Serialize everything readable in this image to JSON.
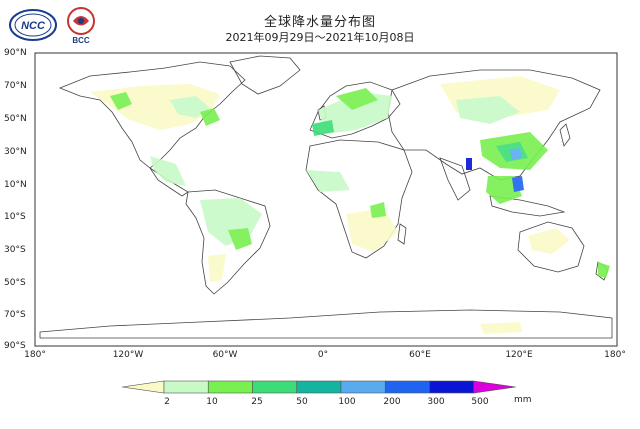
{
  "header": {
    "title": "全球降水量分布图",
    "subtitle": "2021年09月29日～2021年10月08日"
  },
  "logos": {
    "ncc": {
      "text": "NCC",
      "label": "ncc-logo"
    },
    "bcc": {
      "text": "BCC",
      "label": "bcc-logo"
    }
  },
  "axes": {
    "y_labels": [
      "90°N",
      "70°N",
      "50°N",
      "30°N",
      "10°N",
      "10°S",
      "30°S",
      "50°S",
      "70°S",
      "90°S"
    ],
    "x_labels": [
      "180°",
      "120°W",
      "60°W",
      "0°",
      "60°E",
      "120°E",
      "180°"
    ]
  },
  "legend": {
    "unit": "mm",
    "ticks": [
      "2",
      "10",
      "25",
      "50",
      "100",
      "200",
      "300",
      "500"
    ],
    "colors": [
      "#fafac8",
      "#c8fac8",
      "#78f050",
      "#3cdc78",
      "#14b4a0",
      "#5aaaf0",
      "#1e64f0",
      "#0a14d2",
      "#dc00dc"
    ]
  }
}
